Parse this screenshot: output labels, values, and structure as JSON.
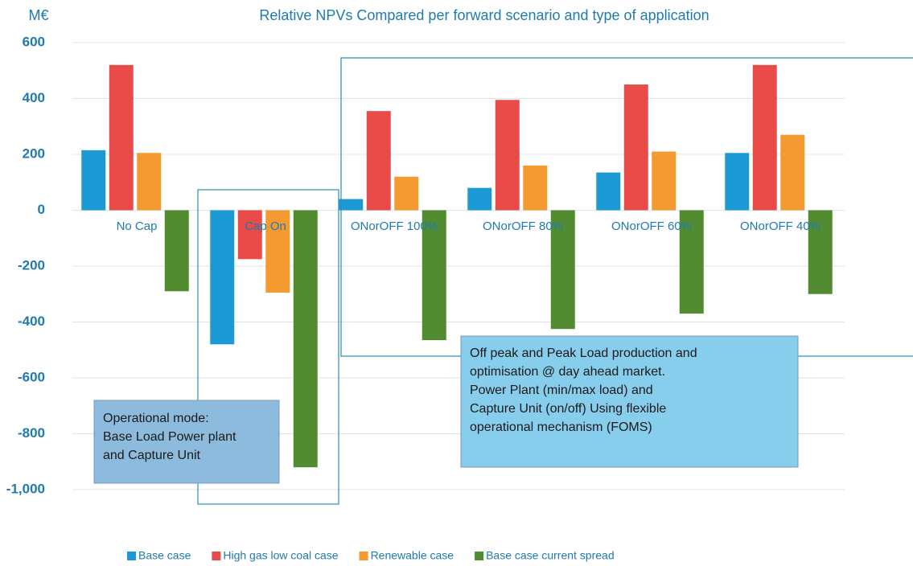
{
  "chart_data": {
    "type": "bar",
    "title": "Relative NPVs Compared per forward scenario and type of application",
    "y_label": "M€",
    "categories": [
      "No Cap",
      "Cap On",
      "ONorOFF 100%",
      "ONorOFF 80%",
      "ONorOFF 60%",
      "ONorOFF 40%"
    ],
    "series": [
      {
        "name": "Base case",
        "color": "#1b9ad6",
        "values": [
          215,
          -480,
          40,
          80,
          135,
          205
        ]
      },
      {
        "name": "High gas low coal case",
        "color": "#e84b48",
        "values": [
          520,
          -175,
          355,
          395,
          450,
          520
        ]
      },
      {
        "name": "Renewable case",
        "color": "#f49a31",
        "values": [
          205,
          -295,
          120,
          160,
          210,
          270
        ]
      },
      {
        "name": "Base case current spread",
        "color": "#528c30",
        "values": [
          -290,
          -920,
          -465,
          -425,
          -370,
          -300
        ]
      }
    ],
    "ylim": [
      -1000,
      600
    ],
    "yticks": [
      600,
      400,
      200,
      0,
      -200,
      -400,
      -600,
      -800,
      {
        "value": -1000,
        "label": "-1,000"
      }
    ],
    "grid": true,
    "legend": "bottom",
    "annotations": [
      {
        "lines": [
          "Operational mode:",
          "Base Load Power plant",
          "and Capture Unit"
        ]
      },
      {
        "lines": [
          "Off peak and Peak Load production and",
          "optimisation @ day ahead market.",
          "Power Plant (min/max load) and",
          "Capture Unit (on/off) Using flexible",
          "operational mechanism (FOMS)"
        ]
      }
    ]
  }
}
